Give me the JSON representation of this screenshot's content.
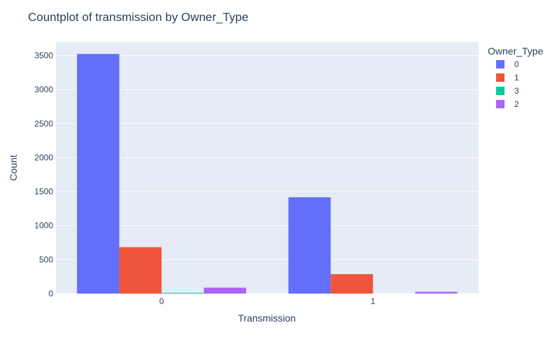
{
  "chart_data": {
    "type": "bar",
    "title": "Countplot of transmission by Owner_Type",
    "xlabel": "Transmission",
    "ylabel": "Count",
    "categories": [
      "0",
      "1"
    ],
    "ylim": [
      0,
      3700
    ],
    "yticks": [
      0,
      500,
      1000,
      1500,
      2000,
      2500,
      3000,
      3500
    ],
    "legend_title": "Owner_Type",
    "legend_position": "right",
    "grid": true,
    "plot_bg": "#e5ecf6",
    "series": [
      {
        "name": "0",
        "color": "#636efa",
        "values": [
          3523,
          1416
        ]
      },
      {
        "name": "1",
        "color": "#ef553b",
        "values": [
          683,
          286
        ]
      },
      {
        "name": "3",
        "color": "#00cc96",
        "values": [
          11,
          0
        ]
      },
      {
        "name": "2",
        "color": "#ab63fa",
        "values": [
          87,
          26
        ]
      }
    ]
  }
}
